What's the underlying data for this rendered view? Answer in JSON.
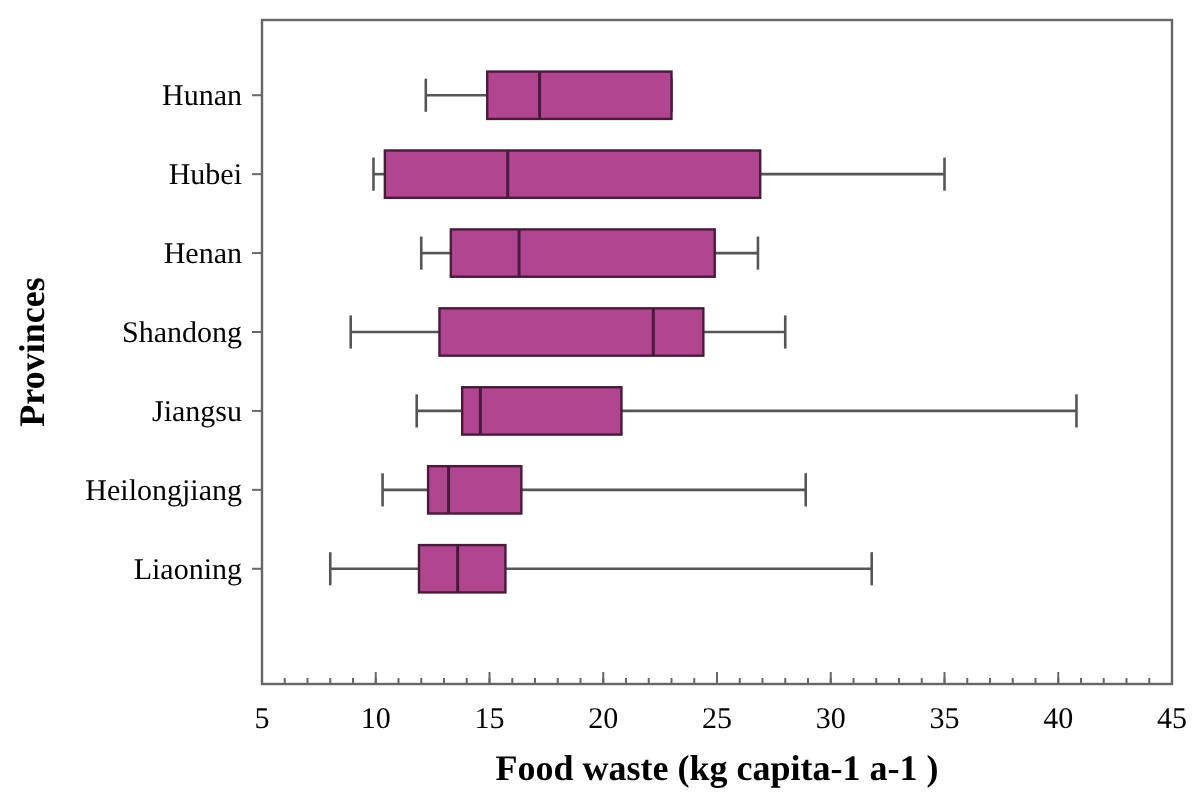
{
  "chart_data": {
    "type": "box",
    "orientation": "horizontal",
    "xlabel": "Food waste (kg capita-1 a-1 )",
    "ylabel": "Provinces",
    "categories": [
      "Hunan",
      "Hubei",
      "Henan",
      "Shandong",
      "Jiangsu",
      "Heilongjiang",
      "Liaoning"
    ],
    "color": "#b0468f",
    "xlim": [
      5,
      45
    ],
    "xticks": [
      5,
      10,
      15,
      20,
      25,
      30,
      35,
      40,
      45
    ],
    "grid": false,
    "boxes": [
      {
        "low": 12.2,
        "q1": 14.9,
        "median": 17.2,
        "q3": 23.0,
        "high": 23.0
      },
      {
        "low": 9.9,
        "q1": 10.4,
        "median": 15.8,
        "q3": 26.9,
        "high": 35.0
      },
      {
        "low": 12.0,
        "q1": 13.3,
        "median": 16.3,
        "q3": 24.9,
        "high": 26.8
      },
      {
        "low": 8.9,
        "q1": 12.8,
        "median": 22.2,
        "q3": 24.4,
        "high": 28.0
      },
      {
        "low": 11.8,
        "q1": 13.8,
        "median": 14.6,
        "q3": 20.8,
        "high": 40.8
      },
      {
        "low": 10.3,
        "q1": 12.3,
        "median": 13.2,
        "q3": 16.4,
        "high": 28.9
      },
      {
        "low": 8.0,
        "q1": 11.9,
        "median": 13.6,
        "q3": 15.7,
        "high": 31.8
      }
    ]
  }
}
